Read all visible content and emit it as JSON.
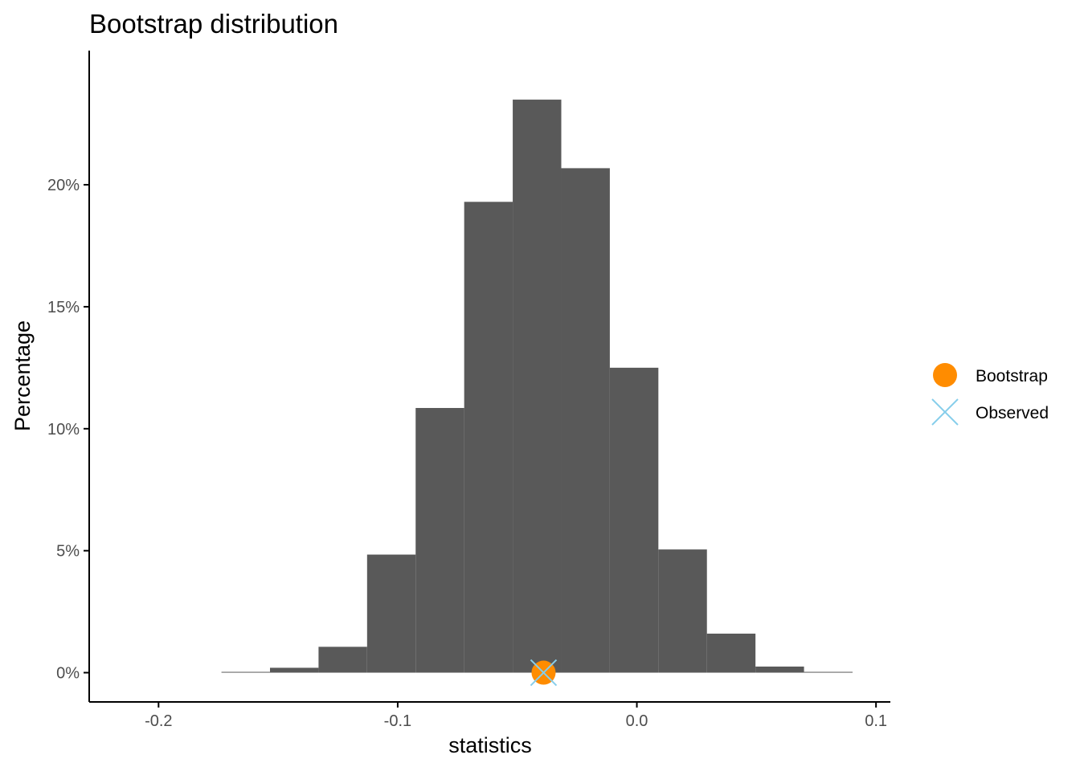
{
  "chart_data": {
    "type": "bar",
    "title": "Bootstrap distribution",
    "xlabel": "statistics",
    "ylabel": "Percentage",
    "xlim": [
      -0.229,
      0.106
    ],
    "ylim": [
      -0.012,
      0.255
    ],
    "x_ticks": [
      -0.2,
      -0.1,
      0.0,
      0.1
    ],
    "x_tick_labels": [
      "-0.2",
      "-0.1",
      "0.0",
      "0.1"
    ],
    "y_ticks": [
      0,
      0.05,
      0.1,
      0.15,
      0.2
    ],
    "y_tick_labels": [
      "0%",
      "5%",
      "10%",
      "15%",
      "20%"
    ],
    "grid": false,
    "bin_width": 0.0203,
    "bins": [
      {
        "x0": -0.1737,
        "x1": -0.1534,
        "value": 0.0003
      },
      {
        "x0": -0.1534,
        "x1": -0.1331,
        "value": 0.002
      },
      {
        "x0": -0.1331,
        "x1": -0.1128,
        "value": 0.0106
      },
      {
        "x0": -0.1128,
        "x1": -0.0925,
        "value": 0.0484
      },
      {
        "x0": -0.0925,
        "x1": -0.0722,
        "value": 0.1085
      },
      {
        "x0": -0.0722,
        "x1": -0.0519,
        "value": 0.193
      },
      {
        "x0": -0.0519,
        "x1": -0.0316,
        "value": 0.2349
      },
      {
        "x0": -0.0316,
        "x1": -0.0113,
        "value": 0.2068
      },
      {
        "x0": -0.0113,
        "x1": 0.009,
        "value": 0.125
      },
      {
        "x0": 0.009,
        "x1": 0.0293,
        "value": 0.0505
      },
      {
        "x0": 0.0293,
        "x1": 0.0496,
        "value": 0.016
      },
      {
        "x0": 0.0496,
        "x1": 0.0699,
        "value": 0.0025
      },
      {
        "x0": 0.0699,
        "x1": 0.0902,
        "value": 0.0003
      }
    ],
    "points": [
      {
        "series": "Bootstrap",
        "x": -0.039,
        "y": 0,
        "shape": "circle",
        "color": "#ff8c00"
      },
      {
        "series": "Observed",
        "x": -0.039,
        "y": 0,
        "shape": "x",
        "color": "#87ceeb"
      }
    ],
    "bar_color": "#595959",
    "legend": {
      "position": "right",
      "entries": [
        {
          "label": "Bootstrap",
          "shape": "circle",
          "color": "#ff8c00"
        },
        {
          "label": "Observed",
          "shape": "x",
          "color": "#87ceeb"
        }
      ]
    }
  }
}
